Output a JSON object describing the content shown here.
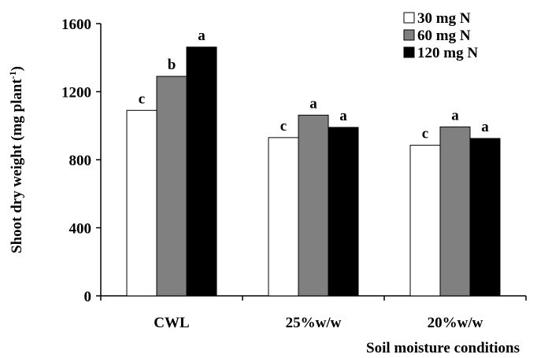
{
  "chart_data": {
    "type": "bar",
    "categories": [
      "CWL",
      "25%w/w",
      "20%w/w"
    ],
    "series": [
      {
        "name": "30 mg N",
        "values": [
          1090,
          930,
          885
        ],
        "color": "#ffffff",
        "letters": [
          "c",
          "c",
          "c"
        ]
      },
      {
        "name": "60 mg N",
        "values": [
          1290,
          1062,
          993
        ],
        "color": "#808080",
        "letters": [
          "b",
          "a",
          "a"
        ]
      },
      {
        "name": "120 mg N",
        "values": [
          1462,
          990,
          925
        ],
        "color": "#000000",
        "letters": [
          "a",
          "a",
          "a"
        ]
      }
    ],
    "ylim": [
      0,
      1600
    ],
    "yticks": [
      "0",
      "400",
      "800",
      "1200",
      "1600"
    ],
    "ylabel": {
      "main": "Shoot dry weight (mg plant",
      "superscript": "-1",
      "close": ")"
    },
    "xlabel": "Soil moisture conditions",
    "legend_position": "top-right",
    "grid": false
  }
}
